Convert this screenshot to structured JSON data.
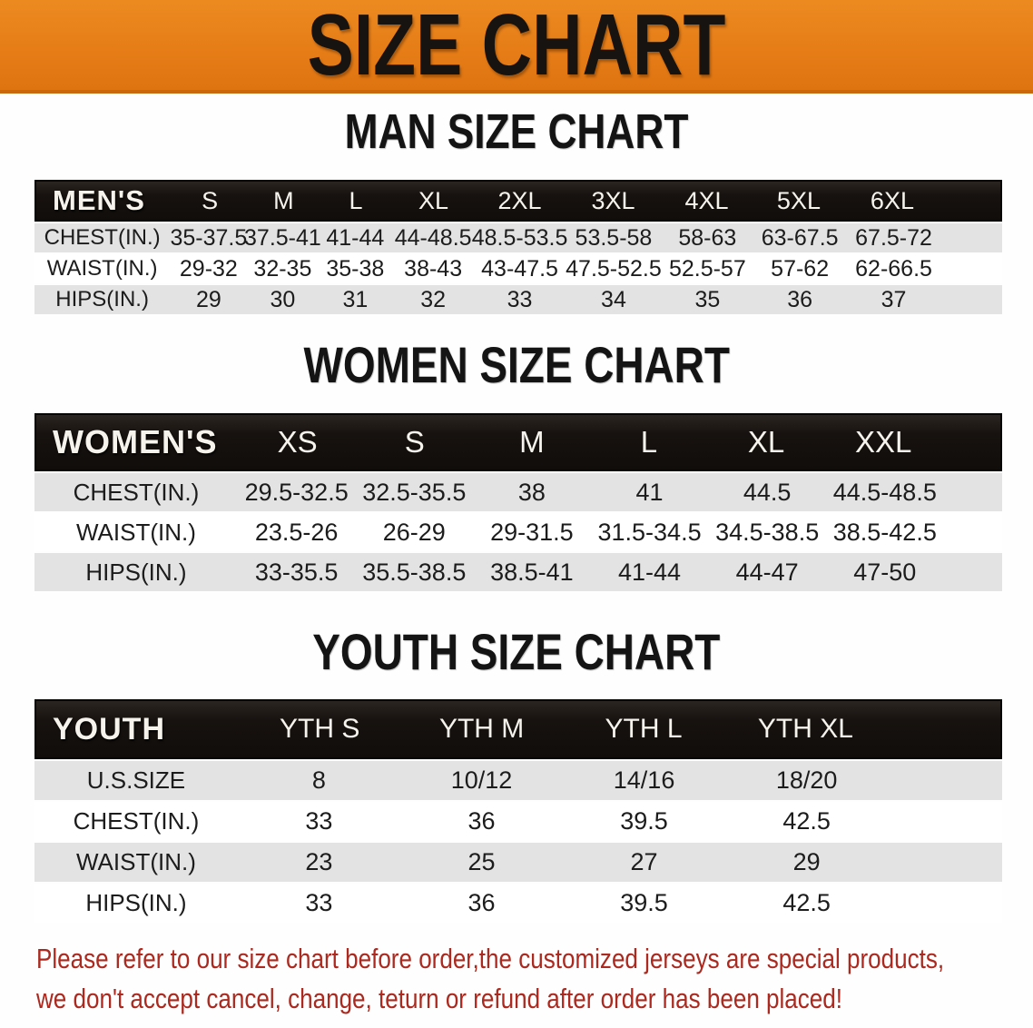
{
  "banner": {
    "title": "SIZE CHART"
  },
  "sections": {
    "men": {
      "title": "MAN SIZE CHART"
    },
    "women": {
      "title": "WOMEN SIZE CHART"
    },
    "youth": {
      "title": "YOUTH SIZE CHART"
    }
  },
  "tables": {
    "men": {
      "header_label": "MEN'S",
      "sizes": [
        "S",
        "M",
        "L",
        "XL",
        "2XL",
        "3XL",
        "4XL",
        "5XL",
        "6XL"
      ],
      "rows": [
        {
          "label": "CHEST(IN.)",
          "values": [
            "35-37.5",
            "37.5-41",
            "41-44",
            "44-48.5",
            "48.5-53.5",
            "53.5-58",
            "58-63",
            "63-67.5",
            "67.5-72"
          ]
        },
        {
          "label": "WAIST(IN.)",
          "values": [
            "29-32",
            "32-35",
            "35-38",
            "38-43",
            "43-47.5",
            "47.5-52.5",
            "52.5-57",
            "57-62",
            "62-66.5"
          ]
        },
        {
          "label": "HIPS(IN.)",
          "values": [
            "29",
            "30",
            "31",
            "32",
            "33",
            "34",
            "35",
            "36",
            "37"
          ]
        }
      ]
    },
    "women": {
      "header_label": "WOMEN'S",
      "sizes": [
        "XS",
        "S",
        "M",
        "L",
        "XL",
        "XXL"
      ],
      "rows": [
        {
          "label": "CHEST(IN.)",
          "values": [
            "29.5-32.5",
            "32.5-35.5",
            "38",
            "41",
            "44.5",
            "44.5-48.5"
          ]
        },
        {
          "label": "WAIST(IN.)",
          "values": [
            "23.5-26",
            "26-29",
            "29-31.5",
            "31.5-34.5",
            "34.5-38.5",
            "38.5-42.5"
          ]
        },
        {
          "label": "HIPS(IN.)",
          "values": [
            "33-35.5",
            "35.5-38.5",
            "38.5-41",
            "41-44",
            "44-47",
            "47-50"
          ]
        }
      ]
    },
    "youth": {
      "header_label": "YOUTH",
      "sizes": [
        "YTH S",
        "YTH M",
        "YTH L",
        "YTH XL"
      ],
      "rows": [
        {
          "label": "U.S.SIZE",
          "values": [
            "8",
            "10/12",
            "14/16",
            "18/20"
          ]
        },
        {
          "label": "CHEST(IN.)",
          "values": [
            "33",
            "36",
            "39.5",
            "42.5"
          ]
        },
        {
          "label": "WAIST(IN.)",
          "values": [
            "23",
            "25",
            "27",
            "29"
          ]
        },
        {
          "label": "HIPS(IN.)",
          "values": [
            "33",
            "36",
            "39.5",
            "42.5"
          ]
        }
      ]
    }
  },
  "disclaimer": {
    "line1": "Please refer to our size chart before order,the customized jerseys are special products,",
    "line2": "we don't accept cancel, change, teturn or refund after order has been placed!"
  },
  "colors": {
    "banner_orange": "#E67D17",
    "band_black": "#17120F",
    "stripe_gray": "#E3E3E3",
    "disclaimer_red": "#AB291E"
  }
}
